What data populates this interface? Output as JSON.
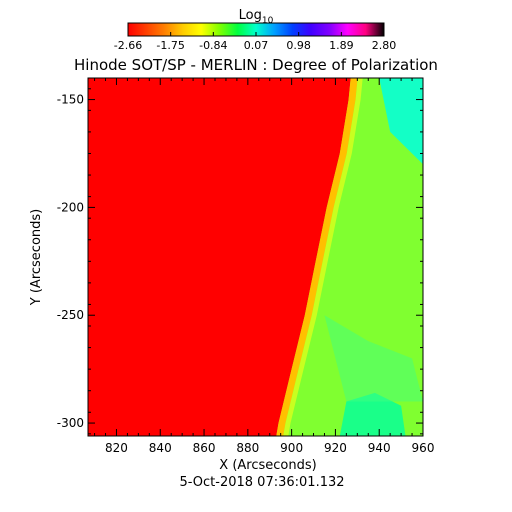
{
  "chart_data": {
    "type": "heatmap",
    "title": "Hinode SOT/SP - MERLIN : Degree of Polarization",
    "subtitle": "5-Oct-2018 07:36:01.132",
    "xlabel": "X (Arcseconds)",
    "ylabel": "Y (Arcseconds)",
    "xlim": [
      807,
      960
    ],
    "ylim": [
      -306,
      -140
    ],
    "x_ticks": [
      "820",
      "840",
      "860",
      "880",
      "900",
      "920",
      "940",
      "960"
    ],
    "y_ticks": [
      "-150",
      "-200",
      "-250",
      "-300"
    ],
    "grid": false,
    "colorbar": {
      "title_base": "Log",
      "title_sub": "10",
      "range": [
        -2.66,
        2.8
      ],
      "ticks": [
        "-2.66",
        "-1.75",
        "-0.84",
        "0.07",
        "0.98",
        "1.89",
        "2.80"
      ],
      "colors": [
        "#ff0000",
        "#ff4000",
        "#ff8000",
        "#ffcc00",
        "#ffff00",
        "#80ff00",
        "#00ff40",
        "#00ffcc",
        "#00a0ff",
        "#0040ff",
        "#4000ff",
        "#8000ff",
        "#ff00ff",
        "#ff0080",
        "#000000"
      ]
    },
    "limb_boundary": {
      "description_values": "x (arcsec) of the edge between low (red) and high (green) polarization, by y (arcsec)",
      "y": [
        -140,
        -150,
        -175,
        -200,
        -225,
        -250,
        -275,
        -300,
        -306
      ],
      "x": [
        927,
        926,
        922,
        916,
        911,
        906,
        900,
        894,
        893
      ]
    },
    "regions": [
      {
        "name": "disk",
        "log_value": -2.66,
        "color": "#ff0000"
      },
      {
        "name": "limb_edge",
        "log_value": 0.5,
        "color": "#ffc000"
      },
      {
        "name": "off_limb",
        "log_value": 1.5,
        "color": "#80ff30"
      },
      {
        "name": "off_limb_high",
        "log_value": 2.0,
        "color": "#00ffa0"
      },
      {
        "name": "off_limb_max",
        "log_value": 2.2,
        "color": "#00ffe0"
      }
    ]
  }
}
